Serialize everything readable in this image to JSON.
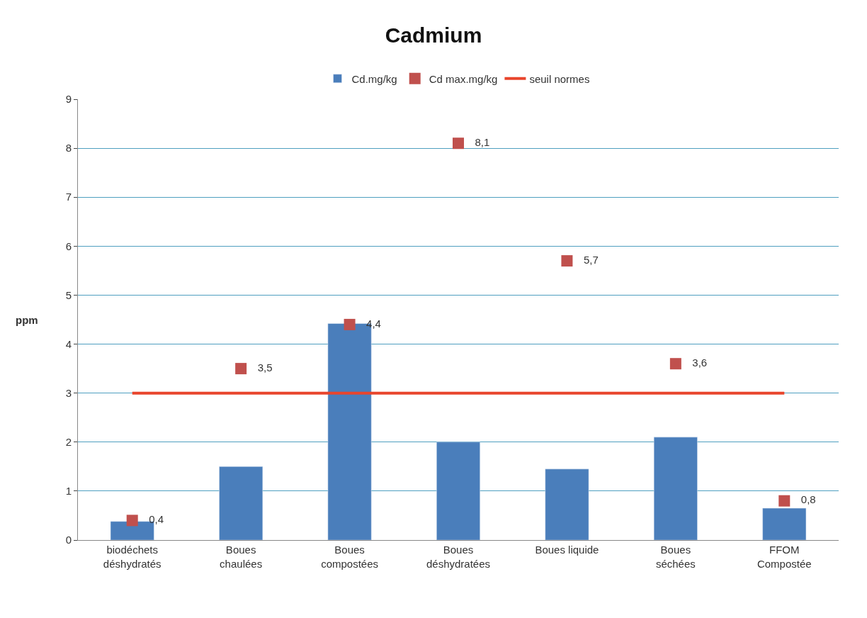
{
  "chart_data": {
    "type": "bar",
    "title": "Cadmium",
    "ylabel": "ppm",
    "categories": [
      "biodéchets\ndéshydratés",
      "Boues\nchaulées",
      "Boues\ncompostées",
      "Boues\ndéshydratées",
      "Boues liquide",
      "Boues\nséchées",
      "FFOM\nCompostée"
    ],
    "series": [
      {
        "name": "Cd.mg/kg",
        "color": "#4a7ebb",
        "values": [
          0.38,
          1.5,
          4.42,
          2.0,
          1.45,
          2.1,
          0.65
        ]
      },
      {
        "name": "Cd max.mg/kg",
        "type": "scatter",
        "marker": "square",
        "color": "#c0504d",
        "values": [
          0.4,
          3.5,
          4.4,
          8.1,
          5.7,
          3.6,
          0.8
        ],
        "value_labels": [
          "0,4",
          "3,5",
          "4,4",
          "8,1",
          "5,7",
          "3,6",
          "0,8"
        ]
      },
      {
        "name": "seuil normes",
        "type": "line",
        "color": "#e8452c",
        "values": [
          3,
          3,
          3,
          3,
          3,
          3,
          3
        ]
      }
    ],
    "ylim": [
      0,
      9
    ],
    "yticks": [
      0,
      1,
      2,
      3,
      4,
      5,
      6,
      7,
      8,
      9
    ],
    "grid": "y",
    "legend": "top"
  }
}
